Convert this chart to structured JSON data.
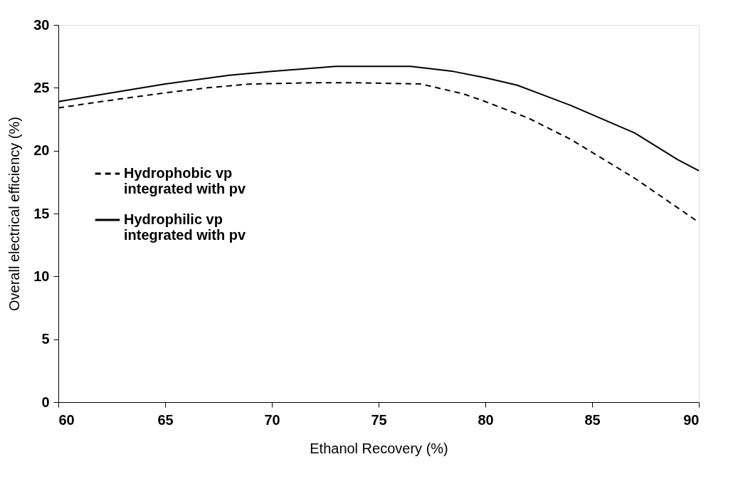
{
  "chart_data": {
    "type": "line",
    "xlabel": "Ethanol Recovery (%)",
    "ylabel": "Overall electrical efficiency (%)",
    "xlim": [
      60,
      90
    ],
    "xticks": [
      60,
      65,
      70,
      75,
      80,
      85,
      90
    ],
    "ylim": [
      0,
      30
    ],
    "yticks": [
      0,
      5,
      10,
      15,
      20,
      25,
      30
    ],
    "grid": false,
    "legend": "left",
    "marker": "none",
    "series": [
      {
        "name": "Hydrophobic vp integrated with pv",
        "color": "#000000",
        "line_style": "dashed",
        "x": [
          60,
          62,
          65,
          67,
          69,
          72,
          74,
          77,
          79,
          80,
          82,
          84,
          87,
          90
        ],
        "values": [
          23.4,
          23.9,
          24.6,
          25.0,
          25.3,
          25.4,
          25.4,
          25.3,
          24.5,
          23.9,
          22.6,
          20.9,
          17.8,
          14.3
        ]
      },
      {
        "name": "Hydrophilic vp integrated with pv",
        "color": "#000000",
        "line_style": "solid",
        "x": [
          60,
          65,
          68,
          70,
          73,
          76.5,
          78.5,
          80,
          81.5,
          84,
          87,
          89,
          90
        ],
        "values": [
          23.9,
          25.3,
          26.0,
          26.3,
          26.7,
          26.7,
          26.3,
          25.8,
          25.2,
          23.6,
          21.4,
          19.3,
          18.4
        ]
      }
    ]
  }
}
